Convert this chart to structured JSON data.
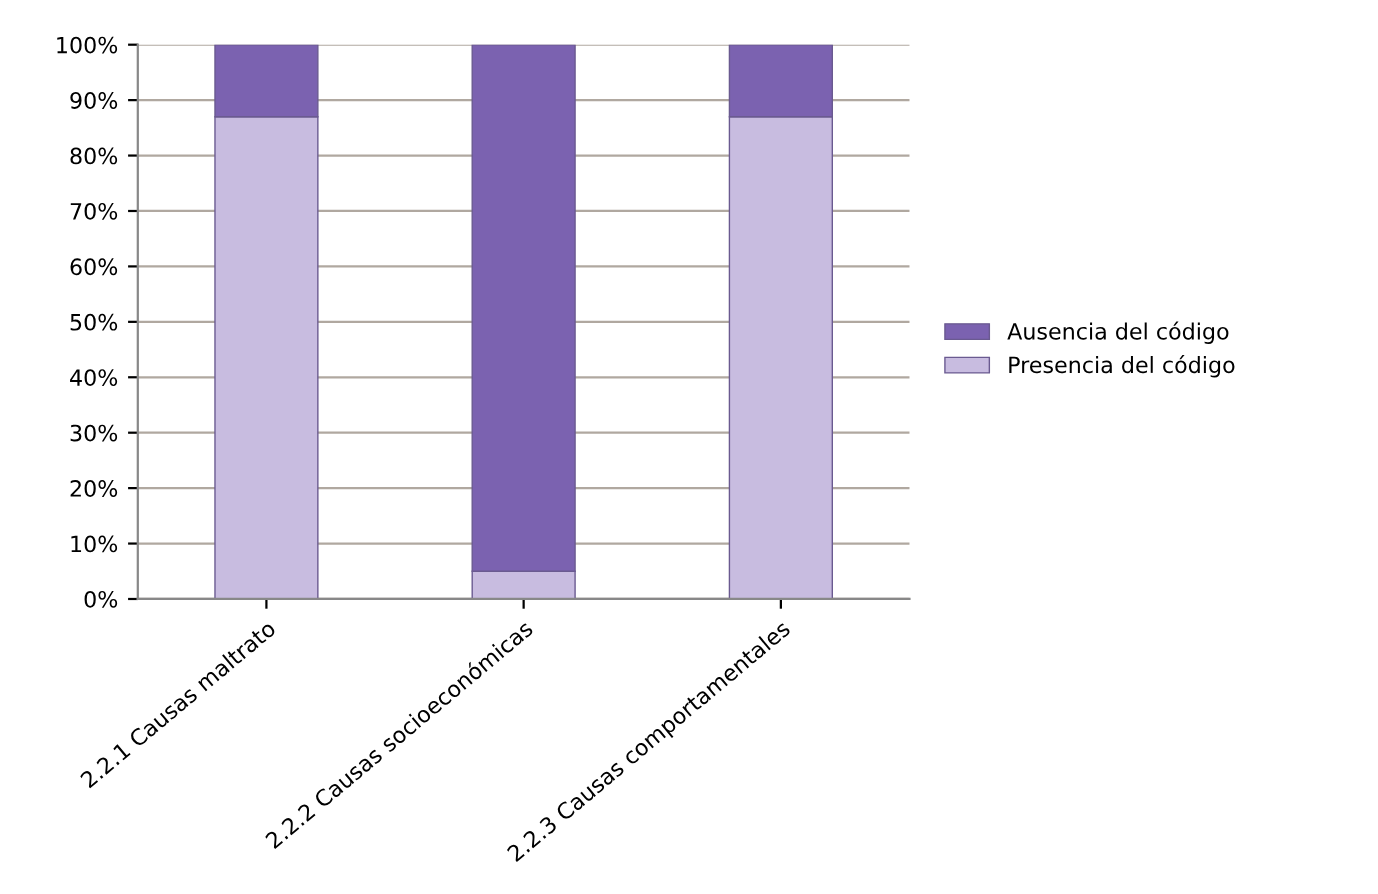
{
  "chart_data": {
    "type": "bar",
    "stacked": true,
    "categories": [
      "2.2.1 Causas maltrato",
      "2.2.2 Causas socioeconómicas",
      "2.2.3 Causas comportamentales"
    ],
    "series": [
      {
        "name": "Presencia del código",
        "color": "#c8bce0",
        "values": [
          87,
          5,
          87
        ]
      },
      {
        "name": "Ausencia del código",
        "color": "#7b62b0",
        "values": [
          13,
          95,
          13
        ]
      }
    ],
    "ylim": [
      0,
      100
    ],
    "yticks": [
      {
        "value": 0,
        "label": "0%"
      },
      {
        "value": 10,
        "label": "10%"
      },
      {
        "value": 20,
        "label": "20%"
      },
      {
        "value": 30,
        "label": "30%"
      },
      {
        "value": 40,
        "label": "40%"
      },
      {
        "value": 50,
        "label": "50%"
      },
      {
        "value": 60,
        "label": "60%"
      },
      {
        "value": 70,
        "label": "70%"
      },
      {
        "value": 80,
        "label": "80%"
      },
      {
        "value": 90,
        "label": "90%"
      },
      {
        "value": 100,
        "label": "100%"
      }
    ],
    "grid": "y",
    "legend": "right"
  }
}
